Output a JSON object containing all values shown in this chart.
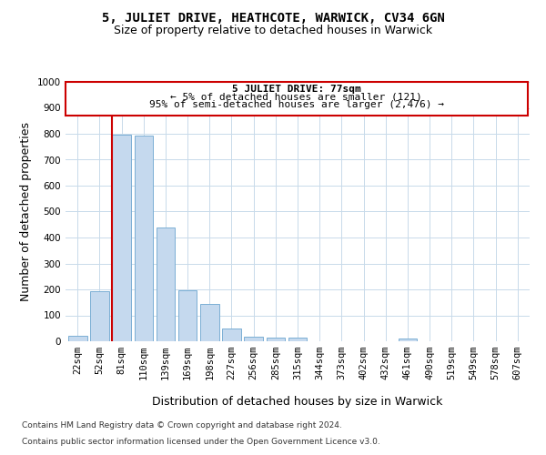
{
  "title": "5, JULIET DRIVE, HEATHCOTE, WARWICK, CV34 6GN",
  "subtitle": "Size of property relative to detached houses in Warwick",
  "xlabel": "Distribution of detached houses by size in Warwick",
  "ylabel": "Number of detached properties",
  "bar_color": "#c5d9ee",
  "bar_edge_color": "#7bafd4",
  "categories": [
    "22sqm",
    "52sqm",
    "81sqm",
    "110sqm",
    "139sqm",
    "169sqm",
    "198sqm",
    "227sqm",
    "256sqm",
    "285sqm",
    "315sqm",
    "344sqm",
    "373sqm",
    "402sqm",
    "432sqm",
    "461sqm",
    "490sqm",
    "519sqm",
    "549sqm",
    "578sqm",
    "607sqm"
  ],
  "values": [
    20,
    192,
    797,
    793,
    440,
    197,
    143,
    50,
    17,
    14,
    13,
    0,
    0,
    0,
    0,
    10,
    0,
    0,
    0,
    0,
    0
  ],
  "ylim": [
    0,
    1000
  ],
  "yticks": [
    0,
    100,
    200,
    300,
    400,
    500,
    600,
    700,
    800,
    900,
    1000
  ],
  "property_label": "5 JULIET DRIVE: 77sqm",
  "annotation_line1": "← 5% of detached houses are smaller (121)",
  "annotation_line2": "95% of semi-detached houses are larger (2,476) →",
  "red_line_bar_index": 2,
  "box_color": "#cc0000",
  "footer_line1": "Contains HM Land Registry data © Crown copyright and database right 2024.",
  "footer_line2": "Contains public sector information licensed under the Open Government Licence v3.0.",
  "background_color": "#ffffff",
  "grid_color": "#c8daea",
  "title_fontsize": 10,
  "subtitle_fontsize": 9,
  "axis_label_fontsize": 9,
  "tick_fontsize": 7.5,
  "annotation_fontsize": 8,
  "footer_fontsize": 6.5
}
